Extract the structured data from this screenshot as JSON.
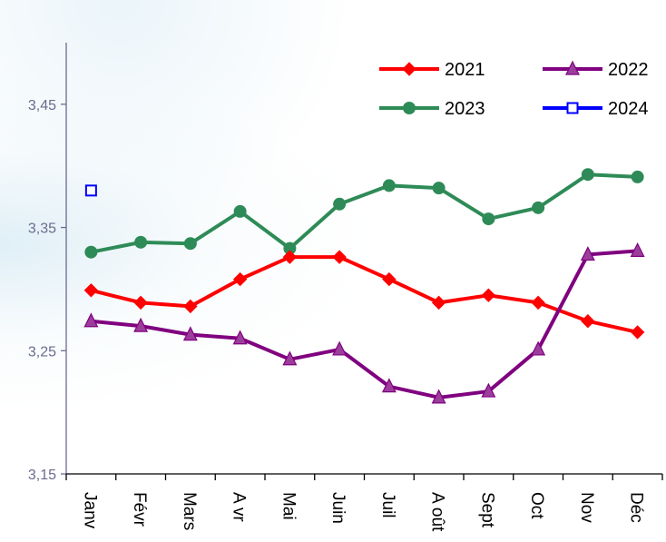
{
  "chart_data": {
    "type": "line",
    "title": "",
    "xlabel": "",
    "ylabel": "",
    "categories": [
      "Janv",
      "Févr",
      "Mars",
      "A vr",
      "Mai",
      "Juin",
      "Juil",
      "A oût",
      "Sept",
      "Oct",
      "Nov",
      "Déc"
    ],
    "ylim": [
      3.15,
      3.5
    ],
    "yticks": [
      "3,15",
      "3,25",
      "3,35",
      "3,45"
    ],
    "ytick_values": [
      3.15,
      3.25,
      3.35,
      3.45
    ],
    "grid": false,
    "legend_position": "top-right",
    "series": [
      {
        "name": "2021",
        "color": "#ff0000",
        "marker": "diamond",
        "values": [
          3.299,
          3.289,
          3.286,
          3.308,
          3.326,
          3.326,
          3.308,
          3.289,
          3.295,
          3.289,
          3.274,
          3.265
        ]
      },
      {
        "name": "2022",
        "color": "#800080",
        "marker": "triangle",
        "values": [
          3.274,
          3.27,
          3.263,
          3.26,
          3.243,
          3.251,
          3.221,
          3.212,
          3.217,
          3.251,
          3.328,
          3.331
        ]
      },
      {
        "name": "2023",
        "color": "#2e8b57",
        "marker": "circle",
        "values": [
          3.33,
          3.338,
          3.337,
          3.363,
          3.333,
          3.369,
          3.384,
          3.382,
          3.357,
          3.366,
          3.393,
          3.391
        ]
      },
      {
        "name": "2024",
        "color": "#0000ff",
        "marker": "square-open",
        "values": [
          3.38,
          null,
          null,
          null,
          null,
          null,
          null,
          null,
          null,
          null,
          null,
          null
        ]
      }
    ]
  }
}
